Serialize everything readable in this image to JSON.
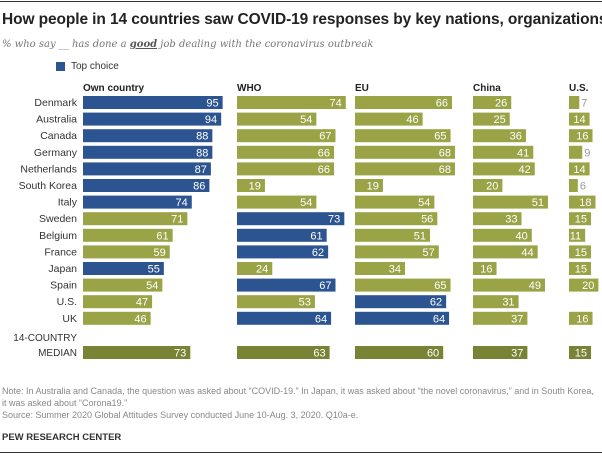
{
  "title": "How people in 14 countries saw COVID-19 responses by key nations, organizations",
  "subtitle": {
    "before": "% who say __ has done a ",
    "emphasis": "good",
    "after": " job dealing with the coronavirus outbreak"
  },
  "legend": {
    "label": "Top choice",
    "color": "#2c5490"
  },
  "colors": {
    "top_choice": "#2c5490",
    "other": "#9ba347",
    "median": "#7a8235",
    "small_label": "#999999"
  },
  "chart_data": {
    "type": "bar",
    "orientation": "horizontal",
    "unit": "%",
    "categories": [
      "Denmark",
      "Australia",
      "Canada",
      "Germany",
      "Netherlands",
      "South Korea",
      "Italy",
      "Sweden",
      "Belgium",
      "France",
      "Japan",
      "Spain",
      "U.S.",
      "UK"
    ],
    "median_label": [
      "14-COUNTRY",
      "MEDIAN"
    ],
    "series": [
      {
        "name": "Own country",
        "values": [
          95,
          94,
          88,
          88,
          87,
          86,
          74,
          71,
          61,
          59,
          55,
          54,
          47,
          46
        ],
        "top": [
          true,
          true,
          true,
          true,
          true,
          true,
          true,
          false,
          false,
          false,
          true,
          false,
          false,
          false
        ],
        "median": 73
      },
      {
        "name": "WHO",
        "values": [
          74,
          54,
          67,
          66,
          66,
          19,
          54,
          73,
          61,
          62,
          24,
          67,
          53,
          64
        ],
        "top": [
          false,
          false,
          false,
          false,
          false,
          false,
          false,
          true,
          true,
          true,
          false,
          true,
          false,
          true
        ],
        "median": 63
      },
      {
        "name": "EU",
        "values": [
          66,
          46,
          65,
          68,
          68,
          19,
          54,
          56,
          51,
          57,
          34,
          65,
          62,
          64
        ],
        "top": [
          false,
          false,
          false,
          false,
          false,
          false,
          false,
          false,
          false,
          false,
          false,
          false,
          true,
          true
        ],
        "median": 60
      },
      {
        "name": "China",
        "values": [
          26,
          25,
          36,
          41,
          42,
          20,
          51,
          33,
          40,
          44,
          16,
          49,
          31,
          37
        ],
        "top": [
          false,
          false,
          false,
          false,
          false,
          false,
          false,
          false,
          false,
          false,
          false,
          false,
          false,
          false
        ],
        "median": 37
      },
      {
        "name": "U.S.",
        "values": [
          7,
          14,
          16,
          9,
          14,
          6,
          18,
          15,
          11,
          15,
          15,
          20,
          null,
          16
        ],
        "top": [
          false,
          false,
          false,
          false,
          false,
          false,
          false,
          false,
          false,
          false,
          false,
          false,
          false,
          false
        ],
        "median": 15
      }
    ]
  },
  "footer": {
    "note": "Note: In Australia and Canada, the question was asked about “COVID-19.” In Japan, it was asked about “the novel coronavirus,” and in South Korea, it was asked about “Corona19.”",
    "source": "Source: Summer 2020 Global Attitudes Survey conducted June 10-Aug. 3, 2020. Q10a-e.",
    "brand": "PEW RESEARCH CENTER"
  }
}
